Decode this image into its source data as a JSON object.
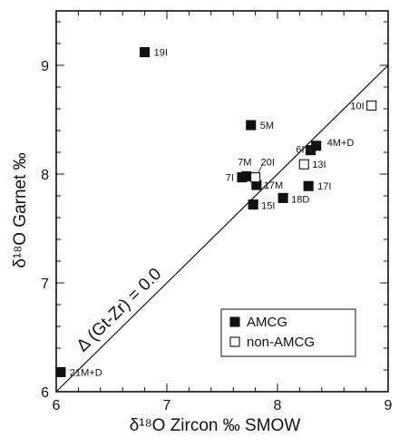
{
  "chart_data": {
    "type": "scatter",
    "xlabel": "δ¹⁸O Zircon ‰ SMOW",
    "ylabel": "δ¹⁸O Garnet ‰",
    "xlim": [
      6,
      9
    ],
    "ylim": [
      6,
      9.5
    ],
    "x_ticks": [
      "6",
      "7",
      "8",
      "9"
    ],
    "y_ticks": [
      "6",
      "7",
      "8",
      "9"
    ],
    "grid": false,
    "legend_position": "bottom-right",
    "reference_line": {
      "label": "Δ (Gt-Zr) = 0.0",
      "slope": 1,
      "intercept": 0
    },
    "series": [
      {
        "name": "AMCG",
        "marker": "filled-square",
        "color": "#111111",
        "points": [
          {
            "label": "19I",
            "x": 6.8,
            "y": 9.12
          },
          {
            "label": "5M",
            "x": 7.76,
            "y": 8.45
          },
          {
            "label": "4M+D",
            "x": 8.35,
            "y": 8.26
          },
          {
            "label": "6I",
            "x": 8.3,
            "y": 8.22
          },
          {
            "label": "7M",
            "x": 7.72,
            "y": 7.98
          },
          {
            "label": "7I",
            "x": 7.68,
            "y": 7.97
          },
          {
            "label": "17M",
            "x": 7.81,
            "y": 7.9
          },
          {
            "label": "17I",
            "x": 8.28,
            "y": 7.89
          },
          {
            "label": "18D",
            "x": 8.05,
            "y": 7.78
          },
          {
            "label": "15I",
            "x": 7.78,
            "y": 7.72
          },
          {
            "label": "21M+D",
            "x": 6.04,
            "y": 6.18
          }
        ]
      },
      {
        "name": "non-AMCG",
        "marker": "open-square",
        "color": "#111111",
        "points": [
          {
            "label": "10I",
            "x": 8.85,
            "y": 8.63
          },
          {
            "label": "13I",
            "x": 8.24,
            "y": 8.09
          },
          {
            "label": "20I",
            "x": 7.8,
            "y": 7.97
          }
        ]
      }
    ]
  }
}
